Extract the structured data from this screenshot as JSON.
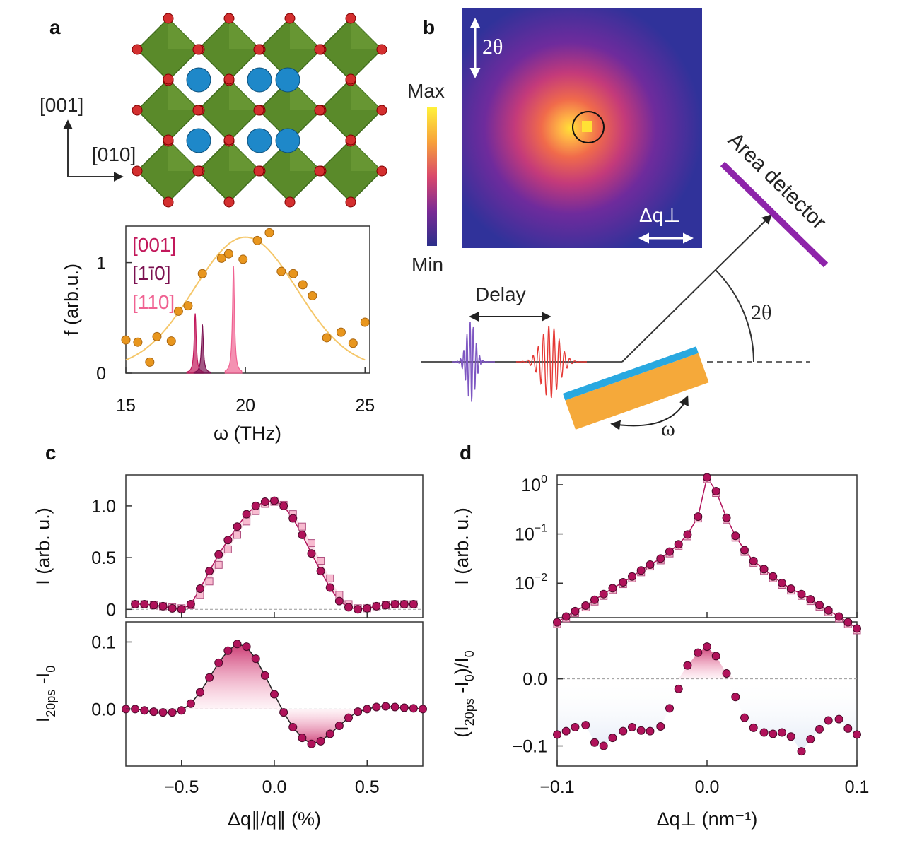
{
  "panels": {
    "a": {
      "label": "a",
      "axis_up": "[001]",
      "axis_right": "[010]",
      "legend": [
        "[001]",
        "[1ī0]",
        "[110]"
      ]
    },
    "b": {
      "label": "b",
      "two_theta_top": "2θ",
      "colorbar_max": "Max",
      "colorbar_min": "Min",
      "dq_perp": "Δq⊥",
      "area_detector": "Area detector",
      "delay": "Delay",
      "two_theta": "2θ",
      "omega": "ω"
    },
    "c": {
      "label": "c"
    },
    "d": {
      "label": "d"
    }
  },
  "colors": {
    "orange": "#e8961e",
    "fit_orange": "#f5c76a",
    "mode_001": "#c2185b",
    "mode_1m10": "#7b1050",
    "mode_110": "#f06292",
    "marker": "#b0125a",
    "detector": "#8e24aa",
    "substrate": "#f5a93a",
    "film": "#29a8e0",
    "octahedra": "#5a8a2a"
  },
  "chart_data": [
    {
      "id": "a",
      "type": "scatter",
      "title": "",
      "xlabel": "ω (THz)",
      "ylabel": "f (arb.u.)",
      "xlim": [
        15,
        25.2
      ],
      "ylim": [
        0,
        1.33
      ],
      "xticks": [
        15,
        20,
        25
      ],
      "yticks": [
        0,
        1
      ],
      "points": {
        "x": [
          15.0,
          15.5,
          16.0,
          16.3,
          16.9,
          17.2,
          17.6,
          18.2,
          19.0,
          19.3,
          19.9,
          20.5,
          21.0,
          21.5,
          22.0,
          22.4,
          22.8,
          23.4,
          24.0,
          24.5,
          25.0
        ],
        "y": [
          0.3,
          0.28,
          0.1,
          0.33,
          0.29,
          0.56,
          0.61,
          0.9,
          1.04,
          1.08,
          1.03,
          1.2,
          1.27,
          0.92,
          0.9,
          0.8,
          0.7,
          0.32,
          0.37,
          0.27,
          0.46
        ]
      },
      "fit": {
        "type": "gaussian",
        "center": 20.0,
        "amplitude": 1.19,
        "sigma": 2.15,
        "offset": 0.04
      },
      "peaks": [
        {
          "name": "[001]",
          "center": 17.9,
          "height": 0.54
        },
        {
          "name": "[1ī0]",
          "center": 18.2,
          "height": 0.44
        },
        {
          "name": "[110]",
          "center": 19.5,
          "height": 0.97
        }
      ]
    },
    {
      "id": "c_top",
      "type": "scatter",
      "xlabel": "",
      "ylabel": "I (arb. u.)",
      "xlim": [
        -0.8,
        0.8
      ],
      "ylim": [
        -0.08,
        1.3
      ],
      "yticks": [
        0,
        0.5,
        1.0
      ],
      "ytick_labels": [
        "0",
        "0.5",
        "1.0"
      ],
      "x": [
        -0.75,
        -0.7,
        -0.65,
        -0.6,
        -0.55,
        -0.5,
        -0.45,
        -0.4,
        -0.35,
        -0.3,
        -0.25,
        -0.2,
        -0.15,
        -0.1,
        -0.05,
        0.0,
        0.05,
        0.1,
        0.15,
        0.2,
        0.25,
        0.3,
        0.35,
        0.4,
        0.45,
        0.5,
        0.55,
        0.6,
        0.65,
        0.7,
        0.75
      ],
      "series": [
        {
          "name": "I_20ps",
          "values": [
            0.05,
            0.05,
            0.04,
            0.03,
            0.01,
            0.0,
            0.05,
            0.2,
            0.37,
            0.53,
            0.67,
            0.8,
            0.92,
            1.0,
            1.04,
            1.05,
            1.0,
            0.88,
            0.72,
            0.54,
            0.37,
            0.21,
            0.08,
            0.02,
            0.0,
            0.01,
            0.03,
            0.04,
            0.05,
            0.05,
            0.05
          ]
        },
        {
          "name": "I_0",
          "values": [
            0.05,
            0.05,
            0.04,
            0.03,
            0.02,
            0.01,
            0.04,
            0.14,
            0.27,
            0.43,
            0.58,
            0.72,
            0.85,
            0.95,
            1.02,
            1.04,
            1.01,
            0.92,
            0.8,
            0.64,
            0.47,
            0.3,
            0.14,
            0.05,
            0.01,
            0.01,
            0.03,
            0.04,
            0.05,
            0.05,
            0.05
          ]
        }
      ]
    },
    {
      "id": "c_bottom",
      "type": "scatter",
      "xlabel": "Δq∥/q∥ (%)",
      "ylabel": "I20ps -I0",
      "xlim": [
        -0.8,
        0.8
      ],
      "ylim": [
        -0.085,
        0.13
      ],
      "xticks": [
        -0.5,
        0.0,
        0.5
      ],
      "xtick_labels": [
        "−0.5",
        "0.0",
        "0.5"
      ],
      "yticks": [
        0,
        0.1
      ],
      "ytick_labels": [
        "0.0",
        "0.1"
      ],
      "x": [
        -0.8,
        -0.75,
        -0.7,
        -0.65,
        -0.6,
        -0.55,
        -0.5,
        -0.45,
        -0.4,
        -0.35,
        -0.3,
        -0.25,
        -0.2,
        -0.15,
        -0.1,
        -0.05,
        0.0,
        0.05,
        0.1,
        0.15,
        0.2,
        0.25,
        0.3,
        0.35,
        0.4,
        0.45,
        0.5,
        0.55,
        0.6,
        0.65,
        0.7,
        0.75,
        0.8
      ],
      "values": [
        0.0,
        0.0,
        -0.002,
        -0.004,
        -0.005,
        -0.005,
        -0.002,
        0.008,
        0.025,
        0.047,
        0.069,
        0.087,
        0.097,
        0.093,
        0.075,
        0.05,
        0.022,
        -0.005,
        -0.027,
        -0.043,
        -0.052,
        -0.048,
        -0.037,
        -0.025,
        -0.013,
        -0.004,
        0.0,
        0.003,
        0.004,
        0.003,
        0.002,
        0.001,
        0.0
      ]
    },
    {
      "id": "d_top",
      "type": "scatter",
      "yscale": "log",
      "ylabel": "I (arb. u.)",
      "xlim": [
        -0.1,
        0.1
      ],
      "ylim_log10": [
        -2.7,
        0.2
      ],
      "yticks": [
        1,
        0.1,
        0.01
      ],
      "ytick_labels": [
        "10",
        "10",
        "10"
      ],
      "ytick_exponents": [
        "0",
        "−1",
        "−2"
      ],
      "x": [
        -0.1,
        -0.094,
        -0.088,
        -0.081,
        -0.075,
        -0.069,
        -0.063,
        -0.056,
        -0.05,
        -0.044,
        -0.038,
        -0.031,
        -0.025,
        -0.019,
        -0.013,
        -0.006,
        0.0,
        0.006,
        0.013,
        0.019,
        0.025,
        0.031,
        0.038,
        0.044,
        0.05,
        0.056,
        0.063,
        0.069,
        0.075,
        0.081,
        0.088,
        0.094,
        0.1
      ],
      "values": [
        0.0016,
        0.0021,
        0.0027,
        0.0035,
        0.0046,
        0.006,
        0.0079,
        0.0104,
        0.0137,
        0.0181,
        0.0238,
        0.0316,
        0.0437,
        0.0616,
        0.0973,
        0.2249,
        1.4125,
        0.7418,
        0.2128,
        0.0915,
        0.0468,
        0.0282,
        0.0193,
        0.0137,
        0.0101,
        0.0077,
        0.006,
        0.0047,
        0.0036,
        0.0028,
        0.0021,
        0.0016,
        0.0012
      ]
    },
    {
      "id": "d_bottom",
      "type": "scatter",
      "xlabel": "Δq⊥ (nm⁻¹)",
      "ylabel": "(I20ps -I0)/I0",
      "xlim": [
        -0.1,
        0.1
      ],
      "ylim": [
        -0.13,
        0.085
      ],
      "xticks": [
        -0.1,
        0.0,
        0.1
      ],
      "xtick_labels": [
        "−0.1",
        "0.0",
        "0.1"
      ],
      "yticks": [
        0,
        -0.1
      ],
      "ytick_labels": [
        "0.0",
        "−0.1"
      ],
      "x": [
        -0.1,
        -0.094,
        -0.088,
        -0.081,
        -0.075,
        -0.069,
        -0.063,
        -0.056,
        -0.05,
        -0.044,
        -0.038,
        -0.031,
        -0.025,
        -0.019,
        -0.013,
        -0.006,
        0.0,
        0.006,
        0.013,
        0.019,
        0.025,
        0.031,
        0.038,
        0.044,
        0.05,
        0.056,
        0.063,
        0.069,
        0.075,
        0.081,
        0.088,
        0.094,
        0.1
      ],
      "values": [
        -0.083,
        -0.078,
        -0.072,
        -0.069,
        -0.095,
        -0.1,
        -0.088,
        -0.078,
        -0.072,
        -0.077,
        -0.078,
        -0.071,
        -0.044,
        -0.015,
        0.02,
        0.039,
        0.048,
        0.034,
        0.008,
        -0.027,
        -0.058,
        -0.073,
        -0.08,
        -0.082,
        -0.08,
        -0.086,
        -0.108,
        -0.09,
        -0.075,
        -0.062,
        -0.06,
        -0.074,
        -0.083
      ]
    }
  ]
}
